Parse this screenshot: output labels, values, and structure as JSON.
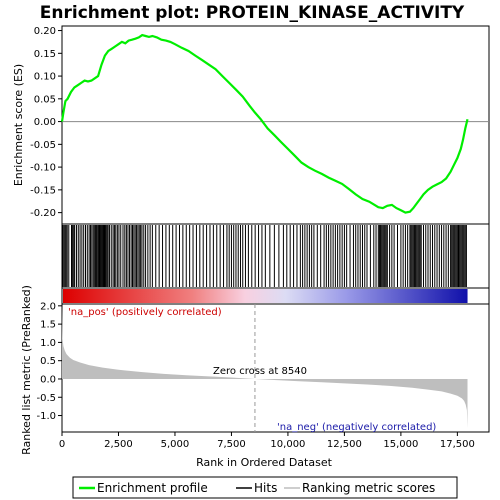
{
  "chart_data": {
    "type": "line",
    "title": "Enrichment plot: PROTEIN_KINASE_ACTIVITY",
    "top_panel": {
      "ylabel": "Enrichment score (ES)",
      "ylim": [
        -0.225,
        0.21
      ],
      "yticks": [
        -0.2,
        -0.15,
        -0.1,
        -0.05,
        0.0,
        0.05,
        0.1,
        0.15,
        0.2
      ],
      "ytick_labels": [
        "-0.20",
        "-0.15",
        "-0.10",
        "-0.05",
        "0.00",
        "0.05",
        "0.10",
        "0.15",
        "0.20"
      ],
      "series": [
        {
          "name": "Enrichment profile",
          "color": "#00ee00",
          "x": [
            0,
            60,
            150,
            250,
            400,
            550,
            700,
            850,
            1000,
            1150,
            1300,
            1450,
            1600,
            1750,
            1900,
            2050,
            2200,
            2350,
            2500,
            2650,
            2800,
            2950,
            3100,
            3250,
            3400,
            3550,
            3700,
            3850,
            4000,
            4200,
            4400,
            4600,
            4800,
            5000,
            5300,
            5600,
            5900,
            6200,
            6500,
            6800,
            7100,
            7400,
            7700,
            8000,
            8300,
            8540,
            8800,
            9100,
            9400,
            9700,
            10000,
            10300,
            10600,
            10900,
            11200,
            11500,
            11800,
            12100,
            12400,
            12700,
            13000,
            13300,
            13600,
            13800,
            14000,
            14200,
            14400,
            14600,
            14800,
            15000,
            15200,
            15400,
            15550,
            15700,
            15850,
            16000,
            16200,
            16400,
            16600,
            16800,
            17000,
            17200,
            17350,
            17500,
            17650,
            17750,
            17850,
            17950
          ],
          "y": [
            0.0,
            0.02,
            0.045,
            0.05,
            0.065,
            0.075,
            0.08,
            0.085,
            0.09,
            0.088,
            0.09,
            0.095,
            0.1,
            0.125,
            0.145,
            0.155,
            0.16,
            0.165,
            0.17,
            0.175,
            0.172,
            0.178,
            0.18,
            0.182,
            0.185,
            0.19,
            0.188,
            0.186,
            0.188,
            0.185,
            0.18,
            0.178,
            0.175,
            0.17,
            0.162,
            0.155,
            0.145,
            0.135,
            0.125,
            0.115,
            0.1,
            0.085,
            0.07,
            0.055,
            0.035,
            0.02,
            0.005,
            -0.015,
            -0.03,
            -0.045,
            -0.06,
            -0.075,
            -0.09,
            -0.1,
            -0.108,
            -0.115,
            -0.123,
            -0.13,
            -0.137,
            -0.148,
            -0.16,
            -0.17,
            -0.176,
            -0.182,
            -0.188,
            -0.19,
            -0.185,
            -0.183,
            -0.19,
            -0.195,
            -0.2,
            -0.198,
            -0.19,
            -0.18,
            -0.17,
            -0.16,
            -0.15,
            -0.143,
            -0.138,
            -0.133,
            -0.125,
            -0.11,
            -0.095,
            -0.08,
            -0.06,
            -0.04,
            -0.015,
            0.005
          ]
        }
      ],
      "hits_label": "Hits"
    },
    "bottom_panel": {
      "ylabel": "Ranked list metric (PreRanked)",
      "ylim": [
        -1.45,
        2.05
      ],
      "yticks": [
        -1.0,
        -0.5,
        0.0,
        0.5,
        1.0,
        1.5,
        2.0
      ],
      "ytick_labels": [
        "-1.0",
        "-0.5",
        "0.0",
        "0.5",
        "1.0",
        "1.5",
        "2.0"
      ],
      "series": [
        {
          "name": "Ranking metric scores",
          "color": "#bebebe",
          "x": [
            0,
            20,
            60,
            120,
            200,
            350,
            500,
            800,
            1200,
            1800,
            2500,
            3500,
            4500,
            5500,
            6500,
            7500,
            8540,
            9500,
            10500,
            11500,
            12500,
            13500,
            14500,
            15500,
            16200,
            16800,
            17200,
            17500,
            17700,
            17800,
            17870,
            17920,
            17950
          ],
          "y": [
            2.0,
            1.1,
            0.9,
            0.78,
            0.68,
            0.58,
            0.52,
            0.45,
            0.38,
            0.31,
            0.25,
            0.19,
            0.14,
            0.1,
            0.07,
            0.04,
            0.0,
            -0.03,
            -0.06,
            -0.09,
            -0.12,
            -0.15,
            -0.19,
            -0.24,
            -0.29,
            -0.34,
            -0.4,
            -0.46,
            -0.53,
            -0.6,
            -0.7,
            -0.85,
            -1.35
          ]
        }
      ],
      "zero_cross_label": "Zero cross at 8540",
      "zero_cross_x": 8540,
      "pos_label": "'na_pos' (positively correlated)",
      "neg_label": "'na_neg' (negatively correlated)"
    },
    "xlabel": "Rank in Ordered Dataset",
    "xlim": [
      0,
      18900
    ],
    "xticks": [
      0,
      2500,
      5000,
      7500,
      10000,
      12500,
      15000,
      17500
    ],
    "xtick_labels": [
      "0",
      "2,500",
      "5,000",
      "7,500",
      "10,000",
      "12,500",
      "15,000",
      "17,500"
    ],
    "hits_x": [
      30,
      80,
      130,
      180,
      230,
      300,
      420,
      470,
      520,
      560,
      640,
      720,
      800,
      880,
      960,
      1040,
      1120,
      1200,
      1260,
      1320,
      1380,
      1430,
      1480,
      1530,
      1580,
      1620,
      1660,
      1700,
      1740,
      1780,
      1820,
      1860,
      1900,
      1940,
      1990,
      2040,
      2100,
      2180,
      2260,
      2320,
      2380,
      2450,
      2520,
      2600,
      2700,
      2780,
      2850,
      2920,
      2990,
      3060,
      3120,
      3180,
      3240,
      3300,
      3360,
      3420,
      3480,
      3540,
      3620,
      3700,
      3800,
      3900,
      4000,
      4150,
      4300,
      4450,
      4600,
      4750,
      4900,
      5050,
      5200,
      5350,
      5500,
      5650,
      5800,
      5950,
      6100,
      6250,
      6400,
      6550,
      6700,
      6850,
      7000,
      7150,
      7300,
      7400,
      7500,
      7600,
      7700,
      7800,
      7900,
      8000,
      8120,
      8250,
      8400,
      8550,
      8700,
      8850,
      9000,
      9200,
      9400,
      9600,
      9800,
      9950,
      10100,
      10250,
      10400,
      10550,
      10650,
      10750,
      10850,
      10950,
      11050,
      11150,
      11300,
      11450,
      11600,
      11700,
      11800,
      11900,
      12000,
      12100,
      12200,
      12300,
      12400,
      12500,
      12600,
      12750,
      12900,
      13000,
      13100,
      13200,
      13300,
      13400,
      13500,
      13650,
      13800,
      13900,
      14000,
      14050,
      14100,
      14150,
      14200,
      14250,
      14300,
      14350,
      14400,
      14500,
      14600,
      14700,
      14850,
      15000,
      15100,
      15200,
      15300,
      15400,
      15450,
      15500,
      15550,
      15600,
      15650,
      15700,
      15750,
      15800,
      15850,
      15900,
      16000,
      16100,
      16200,
      16300,
      16400,
      16500,
      16600,
      16700,
      16800,
      16900,
      17000,
      17100,
      17200,
      17250,
      17300,
      17350,
      17400,
      17450,
      17500,
      17550,
      17600,
      17650,
      17700,
      17750,
      17800,
      17850,
      17900
    ],
    "legend": [
      "Enrichment profile",
      "Hits",
      "Ranking metric scores"
    ],
    "colors": {
      "profile": "#00ee00",
      "hits": "#000000",
      "metric": "#bebebe",
      "pos_end": "#dd0000",
      "neg_end": "#1010aa"
    }
  }
}
